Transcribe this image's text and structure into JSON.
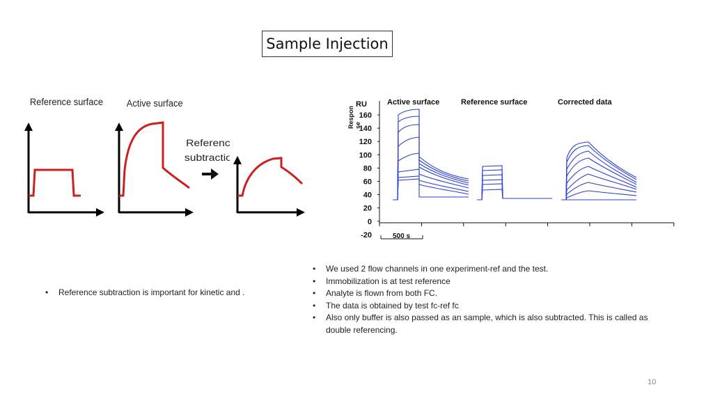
{
  "slide": {
    "title": "Sample Injection",
    "page_number": "10"
  },
  "left_figure": {
    "label_reference": "Reference surface",
    "label_active": "Active surface",
    "label_subtraction_line1": "Reference",
    "label_subtraction_line2": "subtraction",
    "curve_color": "#cc1f1f"
  },
  "right_figure": {
    "unit_label": "RU",
    "axis_label_line1": "Respon",
    "axis_label_line2": "se",
    "y_ticks": [
      "160",
      "140",
      "120",
      "100",
      "80",
      "60",
      "40",
      "20",
      "0",
      "-20"
    ],
    "panel_labels": [
      "Active surface",
      "Reference surface",
      "Corrected data"
    ],
    "scale_bar_label": "500 s",
    "curve_color": "#2b3fcf"
  },
  "bullets_left": [
    "Reference subtraction is important for kinetic and ."
  ],
  "bullets_right": [
    "We used 2 flow channels in one experiment-ref and the test.",
    "Immobilization is at test reference",
    "Analyte is flown from both FC.",
    "The data is obtained by test fc-ref fc",
    "Also only buffer is also passed as an sample, which is also subtracted. This is called as double referencing."
  ]
}
